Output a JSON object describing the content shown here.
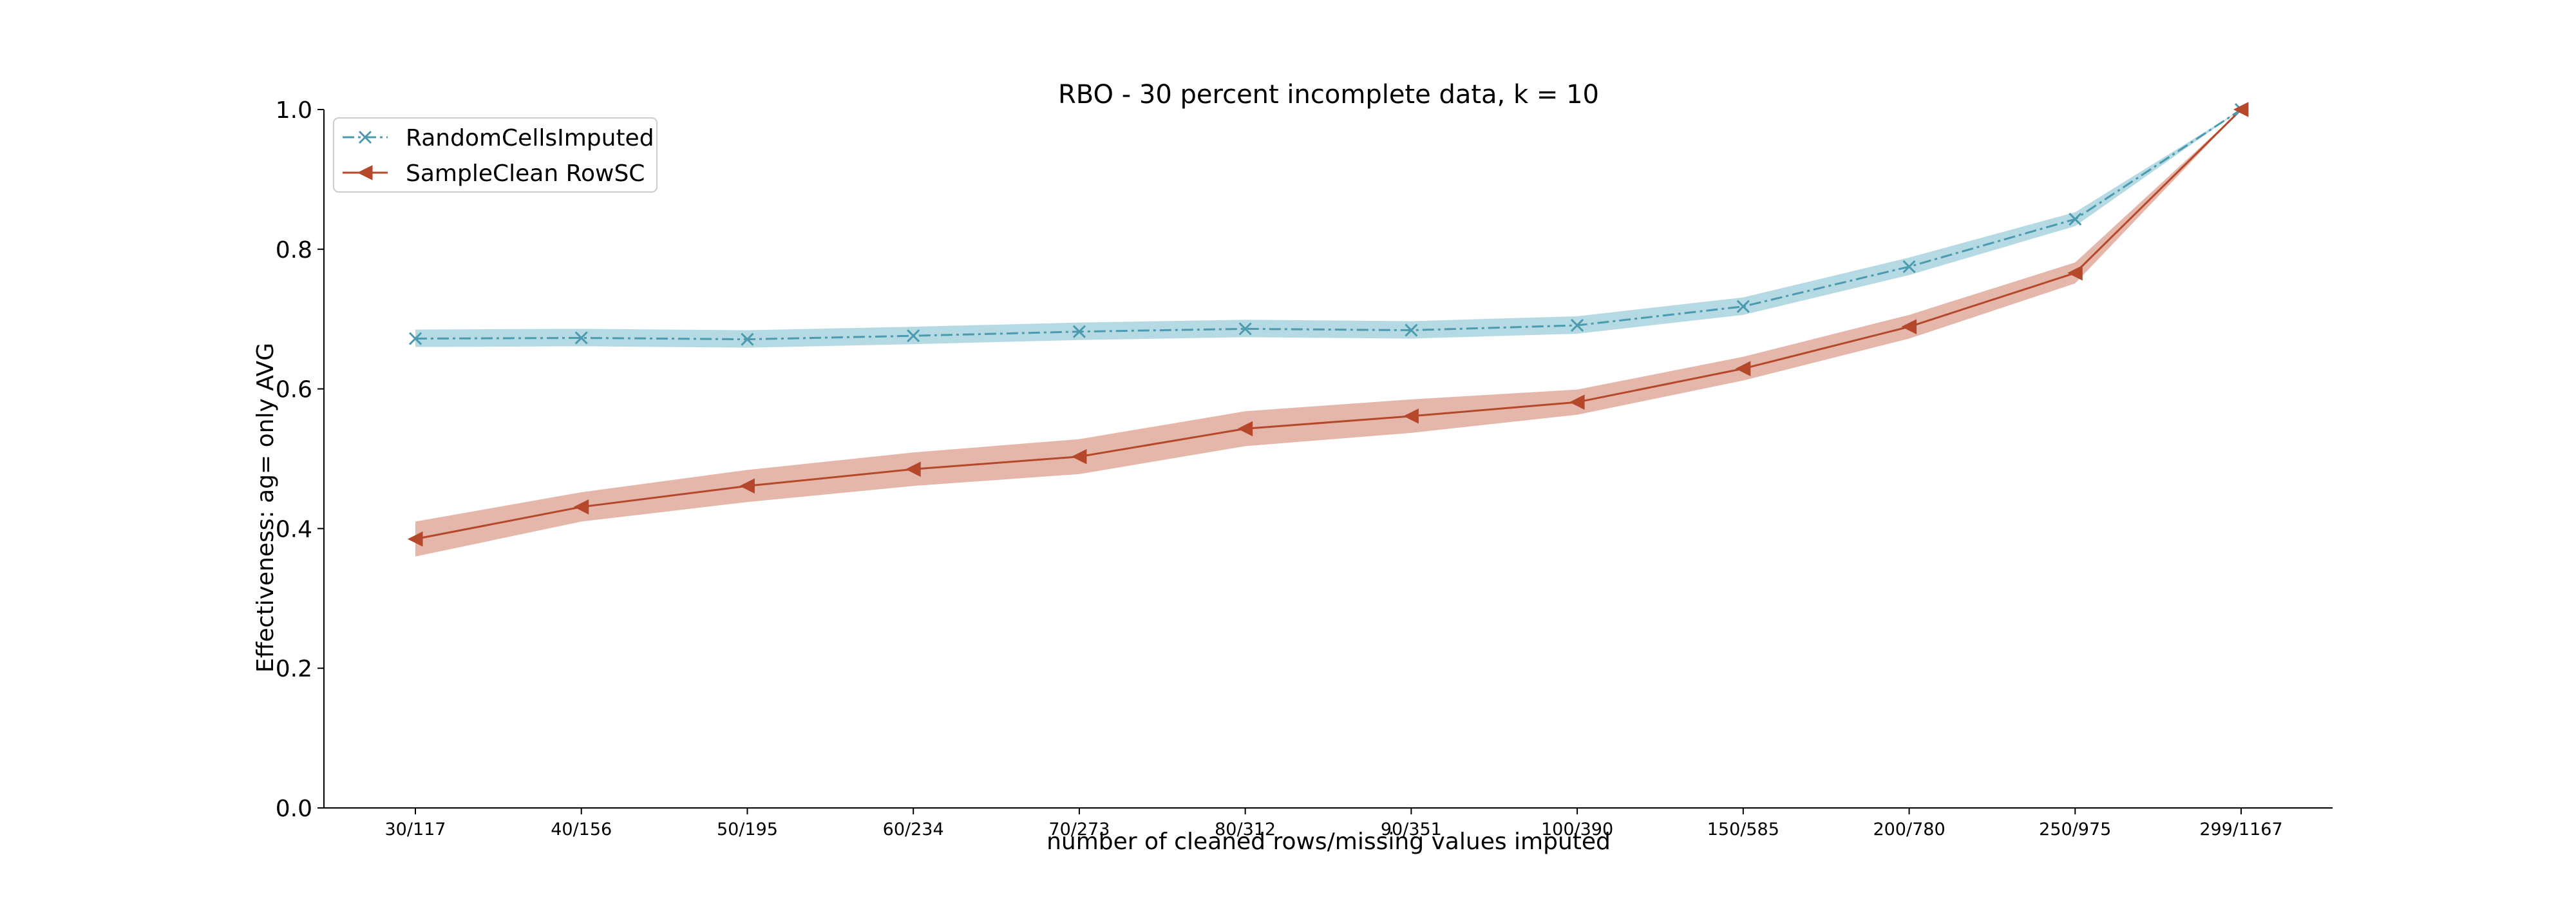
{
  "chart_data": {
    "type": "line",
    "title": "RBO - 30 percent incomplete data, k = 10",
    "xlabel": "number of cleaned rows/missing values imputed",
    "ylabel": "Effectiveness: ag= only AVG",
    "categories": [
      "30/117",
      "40/156",
      "50/195",
      "60/234",
      "70/273",
      "80/312",
      "90/351",
      "100/390",
      "150/585",
      "200/780",
      "250/975",
      "299/1167"
    ],
    "ylim": [
      0.0,
      1.0
    ],
    "yticks": [
      0.0,
      0.2,
      0.4,
      0.6,
      0.8,
      1.0
    ],
    "ytick_labels": [
      "0.0",
      "0.2",
      "0.4",
      "0.6",
      "0.8",
      "1.0"
    ],
    "legend_position": "top-left",
    "series": [
      {
        "name": "RandomCellsImputed",
        "color": "#4a9bb0",
        "band_color": "#a9d3de",
        "marker": "x",
        "linestyle": "dashdot",
        "values": [
          0.672,
          0.673,
          0.671,
          0.676,
          0.682,
          0.686,
          0.684,
          0.691,
          0.718,
          0.775,
          0.843,
          1.0
        ],
        "lower": [
          0.66,
          0.661,
          0.659,
          0.664,
          0.67,
          0.674,
          0.672,
          0.679,
          0.706,
          0.763,
          0.833,
          1.0
        ],
        "upper": [
          0.685,
          0.686,
          0.684,
          0.689,
          0.695,
          0.699,
          0.697,
          0.704,
          0.731,
          0.788,
          0.853,
          1.0
        ]
      },
      {
        "name": "SampleClean RowSC",
        "color": "#b5472a",
        "band_color": "#e0aa9c",
        "marker": "triangle-left",
        "linestyle": "solid",
        "values": [
          0.385,
          0.431,
          0.461,
          0.485,
          0.503,
          0.543,
          0.561,
          0.581,
          0.629,
          0.689,
          0.766,
          1.0
        ],
        "lower": [
          0.36,
          0.41,
          0.438,
          0.461,
          0.478,
          0.518,
          0.537,
          0.563,
          0.612,
          0.672,
          0.751,
          1.0
        ],
        "upper": [
          0.41,
          0.452,
          0.484,
          0.509,
          0.528,
          0.568,
          0.585,
          0.599,
          0.646,
          0.706,
          0.781,
          1.0
        ]
      }
    ]
  }
}
